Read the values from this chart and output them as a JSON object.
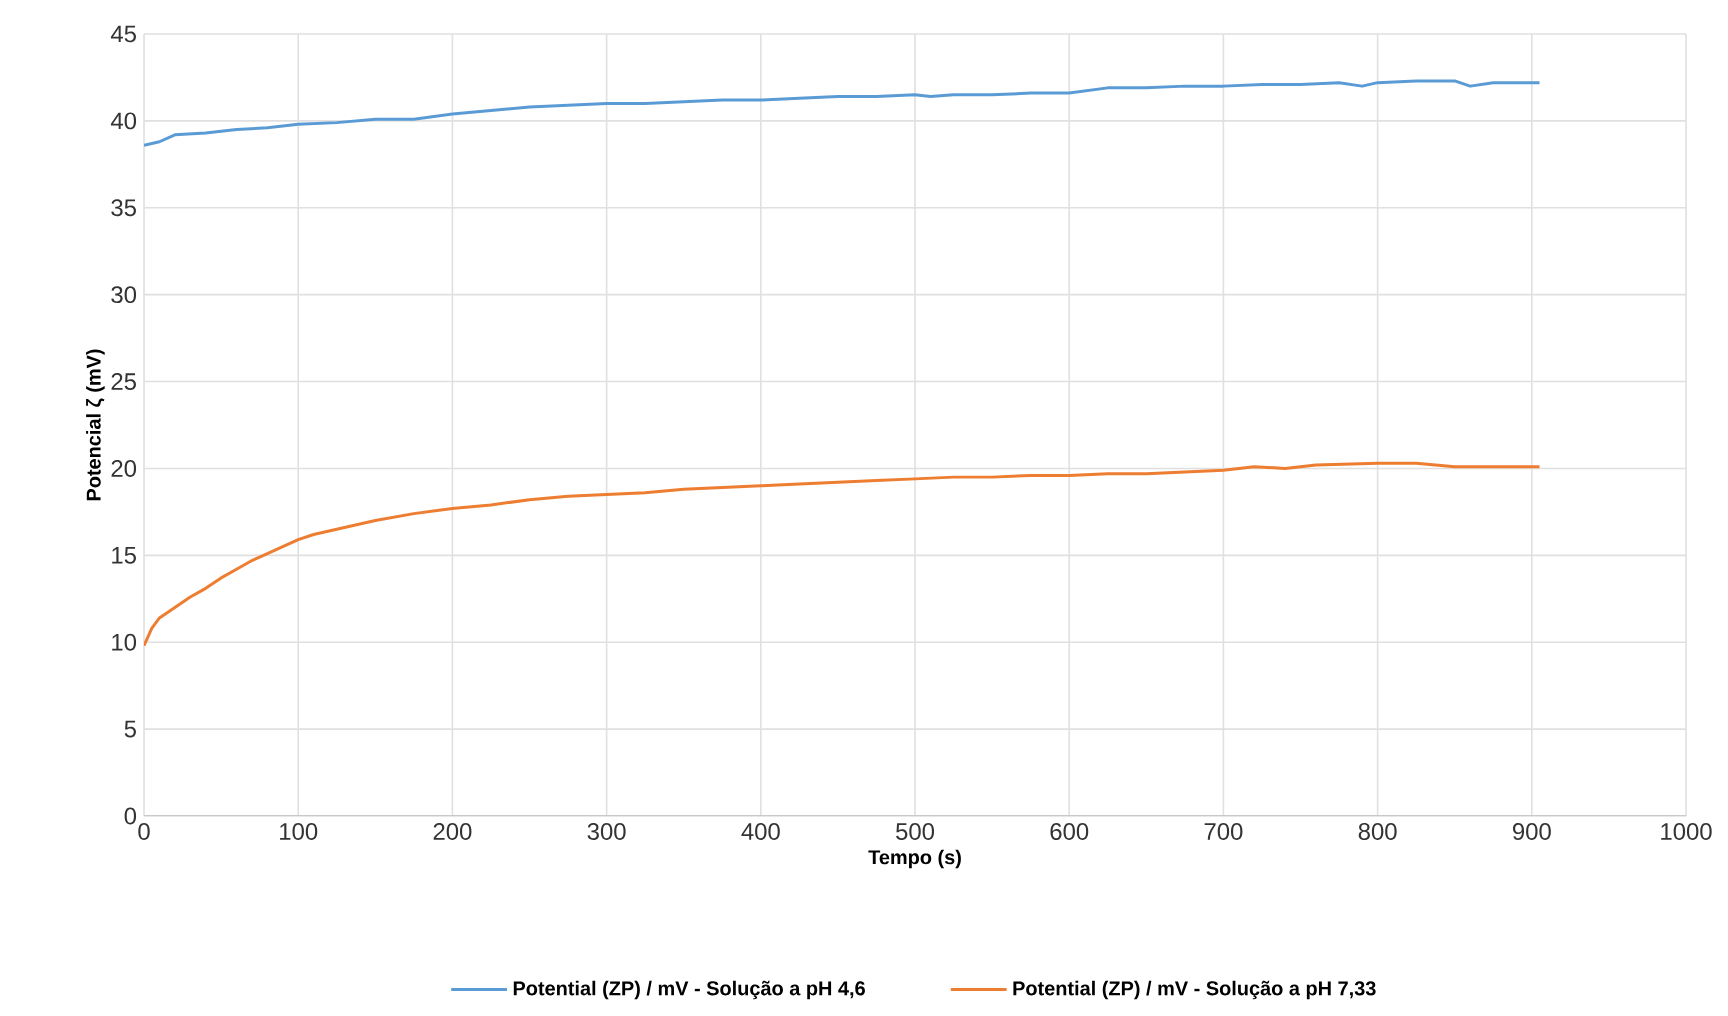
{
  "chart_data": {
    "type": "line",
    "xlabel": "Tempo (s)",
    "ylabel": "Potencial ζ (mV)",
    "xlim": [
      0,
      1000
    ],
    "xticks": [
      0,
      100,
      200,
      300,
      400,
      500,
      600,
      700,
      800,
      900,
      1000
    ],
    "ylim": [
      0,
      45
    ],
    "yticks": [
      0,
      5,
      10,
      15,
      20,
      25,
      30,
      35,
      40,
      45
    ],
    "grid": true,
    "legend": "bottom",
    "marker": "none",
    "line_style": "solid",
    "series": [
      {
        "name": "Potential (ZP) / mV - Solução  a pH 4,6",
        "color": "#5b9bd5",
        "x": [
          0,
          10,
          20,
          40,
          60,
          80,
          100,
          125,
          150,
          175,
          200,
          225,
          250,
          275,
          300,
          325,
          350,
          375,
          400,
          425,
          450,
          475,
          500,
          510,
          525,
          550,
          575,
          600,
          625,
          650,
          675,
          700,
          725,
          750,
          775,
          790,
          800,
          825,
          850,
          860,
          875,
          905
        ],
        "values": [
          38.6,
          38.8,
          39.2,
          39.3,
          39.5,
          39.6,
          39.8,
          39.9,
          40.1,
          40.1,
          40.4,
          40.6,
          40.8,
          40.9,
          41.0,
          41.0,
          41.1,
          41.2,
          41.2,
          41.3,
          41.4,
          41.4,
          41.5,
          41.4,
          41.5,
          41.5,
          41.6,
          41.6,
          41.9,
          41.9,
          42.0,
          42.0,
          42.1,
          42.1,
          42.2,
          42.0,
          42.2,
          42.3,
          42.3,
          42.0,
          42.2,
          42.2
        ]
      },
      {
        "name": "Potential (ZP) / mV - Solução a pH 7,33",
        "color": "#ed7d31",
        "x": [
          0,
          5,
          10,
          20,
          30,
          40,
          50,
          60,
          70,
          80,
          90,
          100,
          110,
          125,
          150,
          175,
          200,
          225,
          250,
          275,
          300,
          325,
          350,
          375,
          400,
          425,
          450,
          475,
          500,
          525,
          550,
          575,
          600,
          625,
          650,
          675,
          700,
          720,
          740,
          760,
          800,
          825,
          850,
          875,
          905
        ],
        "values": [
          9.8,
          10.8,
          11.4,
          12.0,
          12.6,
          13.1,
          13.7,
          14.2,
          14.7,
          15.1,
          15.5,
          15.9,
          16.2,
          16.5,
          17.0,
          17.4,
          17.7,
          17.9,
          18.2,
          18.4,
          18.5,
          18.6,
          18.8,
          18.9,
          19.0,
          19.1,
          19.2,
          19.3,
          19.4,
          19.5,
          19.5,
          19.6,
          19.6,
          19.7,
          19.7,
          19.8,
          19.9,
          20.1,
          20.0,
          20.2,
          20.3,
          20.3,
          20.1,
          20.1,
          20.1
        ]
      }
    ]
  }
}
